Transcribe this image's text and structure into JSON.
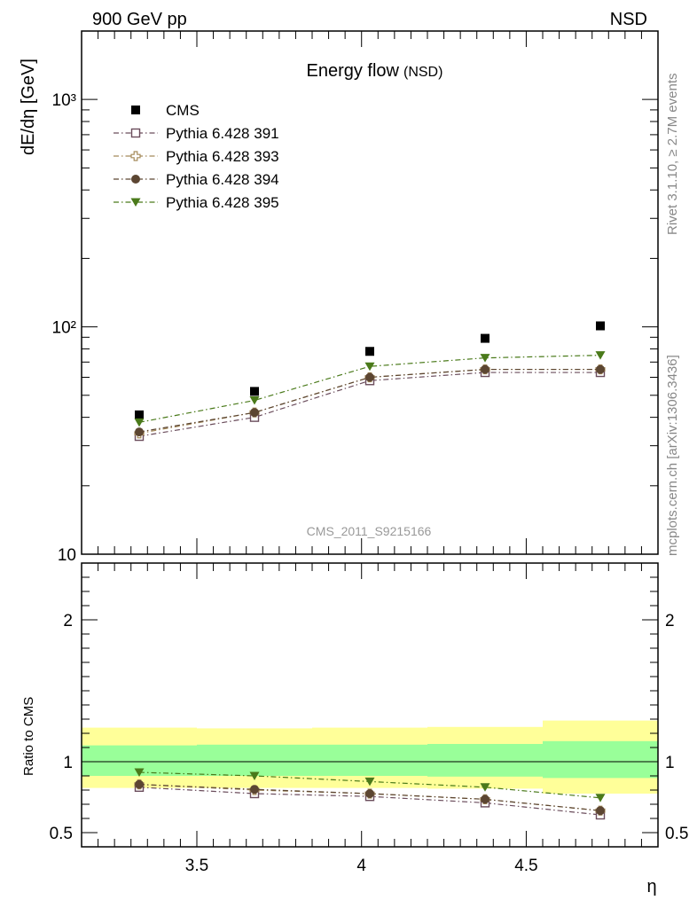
{
  "header": {
    "left_label": "900 GeV pp",
    "right_label": "NSD"
  },
  "side_text": {
    "rivet": "Rivet 3.1.10, ≥ 2.7M events",
    "mcplots": "mcplots.cern.ch [arXiv:1306.3436]"
  },
  "chart_data": [
    {
      "type": "scatter",
      "title": "Energy flow",
      "title_suffix": "(NSD)",
      "watermark": "CMS_2011_S9215166",
      "ylabel": "dE/dη [GeV]",
      "xlabel": "",
      "xlim": [
        3.15,
        4.9
      ],
      "ylim": [
        10,
        2000
      ],
      "yscale": "log",
      "y_tick_labels": [
        "10",
        "10²",
        "10³"
      ],
      "legend_position": "top-left",
      "x": [
        3.325,
        3.675,
        4.025,
        4.375,
        4.725
      ],
      "series": [
        {
          "name": "CMS",
          "values": [
            41,
            52,
            78,
            89,
            101
          ],
          "marker": "square-filled",
          "color": "#000000"
        },
        {
          "name": "Pythia 6.428 391",
          "values": [
            33,
            40,
            58,
            63,
            63
          ],
          "marker": "square-open",
          "color": "#6b4d5c"
        },
        {
          "name": "Pythia 6.428 393",
          "values": [
            34,
            42,
            60,
            65,
            65
          ],
          "marker": "cross-open",
          "color": "#a58a5a"
        },
        {
          "name": "Pythia 6.428 394",
          "values": [
            34.5,
            42,
            60,
            65,
            65
          ],
          "marker": "circle-filled",
          "color": "#5c4632"
        },
        {
          "name": "Pythia 6.428 395",
          "values": [
            38,
            47.5,
            67,
            73,
            75
          ],
          "marker": "triangle-down",
          "color": "#4a7a1a"
        }
      ]
    },
    {
      "type": "scatter",
      "title": "",
      "xlabel": "η",
      "ylabel": "Ratio to CMS",
      "xlim": [
        3.15,
        4.9
      ],
      "ylim": [
        0.4,
        2.4
      ],
      "x_tick_labels": [
        "3.5",
        "4",
        "4.5"
      ],
      "y_tick_labels": [
        "0.5",
        "1",
        "2"
      ],
      "x": [
        3.325,
        3.675,
        4.025,
        4.375,
        4.725
      ],
      "bands": {
        "edges": [
          3.15,
          3.5,
          3.85,
          4.2,
          4.55,
          4.9
        ],
        "inner_low": [
          0.9,
          0.9,
          0.9,
          0.895,
          0.885
        ],
        "inner_high": [
          1.115,
          1.12,
          1.12,
          1.125,
          1.145
        ],
        "outer_low": [
          0.815,
          0.815,
          0.815,
          0.81,
          0.775
        ],
        "outer_high": [
          1.24,
          1.235,
          1.24,
          1.245,
          1.29
        ],
        "inner_color": "#99ff99",
        "outer_color": "#ffff99"
      },
      "series": [
        {
          "name": "Pythia 6.428 391",
          "values": [
            0.82,
            0.775,
            0.755,
            0.71,
            0.625
          ]
        },
        {
          "name": "Pythia 6.428 393",
          "values": [
            0.84,
            0.8,
            0.775,
            0.735,
            0.655
          ]
        },
        {
          "name": "Pythia 6.428 394",
          "values": [
            0.84,
            0.805,
            0.775,
            0.735,
            0.655
          ]
        },
        {
          "name": "Pythia 6.428 395",
          "values": [
            0.925,
            0.9,
            0.86,
            0.82,
            0.745
          ]
        }
      ]
    }
  ]
}
